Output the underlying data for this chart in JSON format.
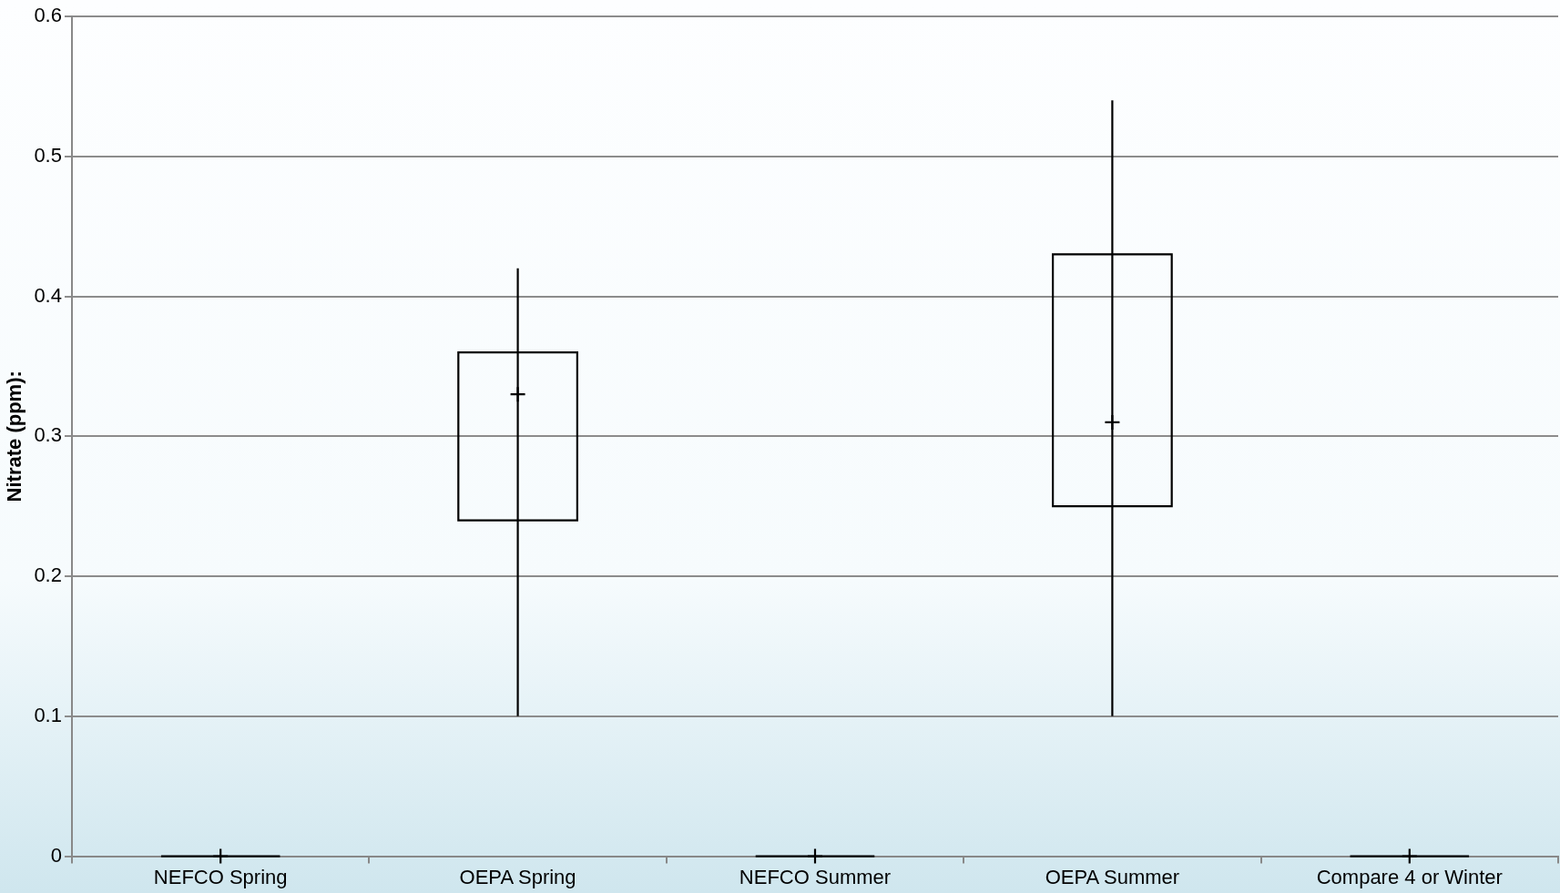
{
  "chart_data": {
    "type": "box",
    "ylabel": "Nitrate (ppm):",
    "categories": [
      "NEFCO Spring",
      "OEPA Spring",
      "NEFCO Summer",
      "OEPA Summer",
      "Compare 4 or Winter"
    ],
    "boxes": [
      {
        "low": 0,
        "q1": 0,
        "q3": 0,
        "high": 0,
        "mean": 0
      },
      {
        "low": 0.1,
        "q1": 0.24,
        "q3": 0.36,
        "high": 0.42,
        "mean": 0.33
      },
      {
        "low": 0,
        "q1": 0,
        "q3": 0,
        "high": 0,
        "mean": 0
      },
      {
        "low": 0.1,
        "q1": 0.25,
        "q3": 0.43,
        "high": 0.54,
        "mean": 0.31
      },
      {
        "low": 0,
        "q1": 0,
        "q3": 0,
        "high": 0,
        "mean": 0
      }
    ],
    "color": "#000000",
    "ylim": [
      0,
      0.6
    ],
    "yticks": [
      0,
      0.1,
      0.2,
      0.3,
      0.4,
      0.5,
      0.6
    ],
    "grid": "y",
    "legend": false
  }
}
